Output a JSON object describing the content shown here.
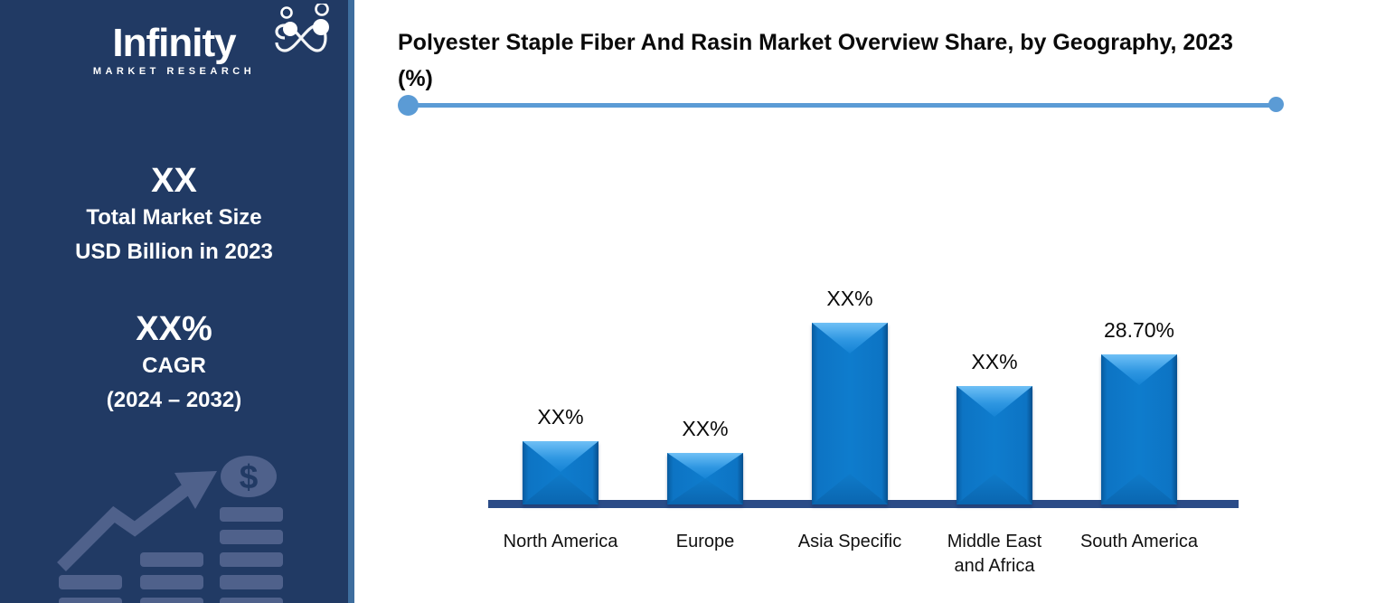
{
  "colors": {
    "sidebar_bg": "#213A64",
    "accent_strip": "#3E6E9E",
    "underline_accent": "#5B9BD5",
    "bar_blue": "#0E7CCD",
    "bar_highlight": "#6FC0F6",
    "axis_navy": "#2B4C87",
    "decoration_watermark": "#53658F",
    "text_dark": "#0A0A0A",
    "text_white": "#FFFFFF"
  },
  "sidebar": {
    "logo": {
      "brand": "Infinity",
      "tagline": "MARKET RESEARCH",
      "icon": "infinity-people-icon"
    },
    "market_size": {
      "value": "XX",
      "line1": "Total Market Size",
      "line2": "USD Billion in 2023"
    },
    "cagr": {
      "value": "XX%",
      "label": "CAGR",
      "period": "(2024 – 2032)"
    },
    "decoration_icons": [
      "growth-arrow-icon",
      "dollar-coin-icon",
      "bar-stack-icon"
    ]
  },
  "header": {
    "title": "Polyester Staple Fiber And Rasin Market Overview Share, by Geography, 2023 (%)",
    "title_line1": "Polyester Staple Fiber And Rasin Market Overview Share, by Geography, 2023",
    "title_line2": "(%)"
  },
  "chart_data": {
    "type": "bar",
    "title": "Polyester Staple Fiber And Rasin Market Overview Share, by Geography, 2023 (%)",
    "categories": [
      "North America",
      "Europe",
      "Asia Specific",
      "Middle East and Africa",
      "South America"
    ],
    "value_labels": [
      "XX%",
      "XX%",
      "XX%",
      "XX%",
      "28.70%"
    ],
    "values": [
      null,
      null,
      null,
      null,
      28.7
    ],
    "estimated_heights_pct": [
      12.1,
      9.9,
      34.8,
      22.7,
      28.7
    ],
    "unit": "%",
    "xlabel": "",
    "ylabel": "",
    "legend": false,
    "gridlines": false,
    "y_axis_shown": false,
    "bar_color": "#0E7CCD",
    "baseline_color": "#2B4C87"
  }
}
